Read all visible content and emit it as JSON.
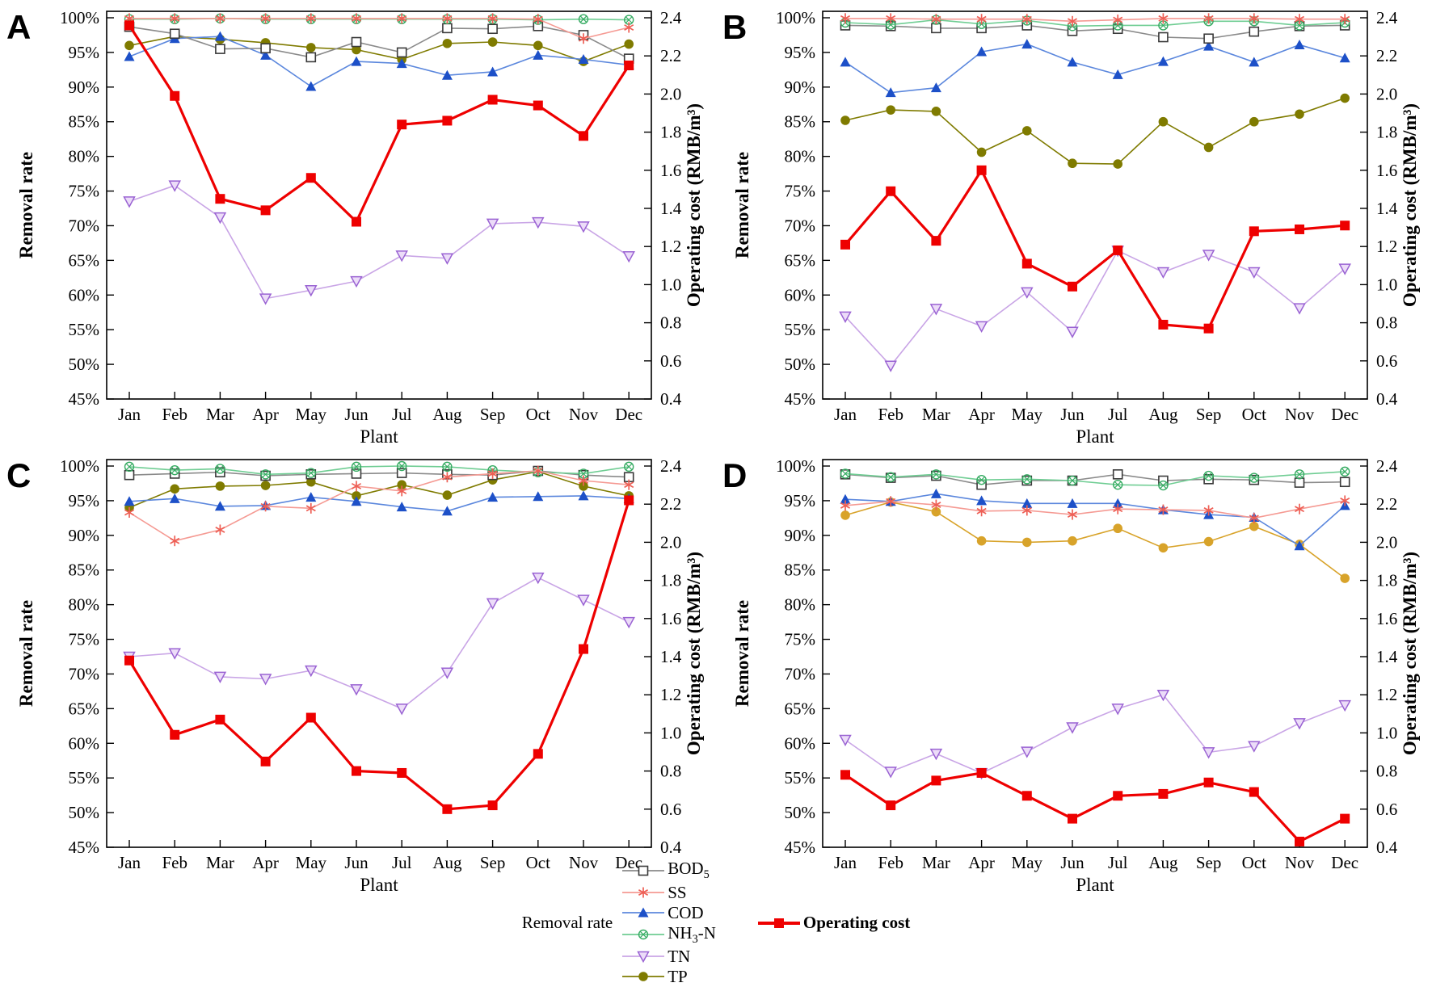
{
  "figure": {
    "panel_letters": [
      "A",
      "B",
      "C",
      "D"
    ],
    "x_axis_label": "Plant",
    "y_left_label": "Removal rate",
    "y_right_label": "Operating cost (RMB/m³)",
    "months": [
      "Jan",
      "Feb",
      "Mar",
      "Apr",
      "May",
      "Jun",
      "Jul",
      "Aug",
      "Sep",
      "Oct",
      "Nov",
      "Dec"
    ],
    "y_left": {
      "min": 45,
      "max": 100,
      "step": 5,
      "unit": "%"
    },
    "y_right": {
      "min": 0.4,
      "max": 2.4,
      "step": 0.2
    },
    "colors": {
      "bod5": "#3a3a3a",
      "bod5_line": "#8a8a8a",
      "ss": "#ee5f55",
      "ss_line": "#f59a93",
      "cod": "#1d50c8",
      "cod_line": "#5b87dd",
      "nh3n": "#36ab62",
      "nh3n_line": "#6fcd93",
      "tn": "#9a63d3",
      "tn_line": "#c9a5e6",
      "tn_fill": "#ecdcf8",
      "tp": "#7f7b00",
      "tp_panel_d": "#d8a32a",
      "operating_cost": "#ee0000"
    },
    "legend": {
      "title": "Removal rate",
      "cost_label": "Operating cost",
      "items": [
        {
          "key": "BOD5",
          "pre": "BOD",
          "sub": "5",
          "post": ""
        },
        {
          "key": "SS",
          "pre": "SS",
          "sub": "",
          "post": ""
        },
        {
          "key": "COD",
          "pre": "COD",
          "sub": "",
          "post": ""
        },
        {
          "key": "NH3-N",
          "pre": "NH",
          "sub": "3",
          "post": "-N"
        },
        {
          "key": "TN",
          "pre": "TN",
          "sub": "",
          "post": ""
        },
        {
          "key": "TP",
          "pre": "TP",
          "sub": "",
          "post": ""
        }
      ]
    },
    "series_styles": {
      "BOD5": {
        "marker": "open-square",
        "color": "#3a3a3a",
        "line": "#8a8a8a"
      },
      "SS": {
        "marker": "asterisk",
        "color": "#ee5f55",
        "line": "#f59a93"
      },
      "COD": {
        "marker": "filled-triangle-up",
        "color": "#1d50c8",
        "line": "#5b87dd"
      },
      "NH3-N": {
        "marker": "circle-x",
        "color": "#36ab62",
        "line": "#6fcd93"
      },
      "TN": {
        "marker": "open-triangle-down",
        "color": "#9a63d3",
        "line": "#c9a5e6",
        "fill": "#ecdcf8"
      },
      "TP": {
        "marker": "filled-circle",
        "color": "#7f7b00",
        "line": "#7f7b00"
      },
      "Operating cost": {
        "marker": "filled-square",
        "color": "#ee0000",
        "line": "#ee0000",
        "width": 3.2
      }
    }
  },
  "chart_data": [
    {
      "id": "A",
      "type": "line",
      "categories": [
        "Jan",
        "Feb",
        "Mar",
        "Apr",
        "May",
        "Jun",
        "Jul",
        "Aug",
        "Sep",
        "Oct",
        "Nov",
        "Dec"
      ],
      "xlabel": "Plant",
      "y_left_label": "Removal rate",
      "y_right_label": "Operating cost (RMB/m³)",
      "y_left_range": [
        45,
        100
      ],
      "y_right_range": [
        0.4,
        2.4
      ],
      "series": [
        {
          "name": "BOD5",
          "axis": "left",
          "values": [
            98.7,
            97.7,
            95.5,
            95.6,
            94.3,
            96.5,
            95.0,
            98.5,
            98.4,
            98.8,
            97.5,
            94.1
          ]
        },
        {
          "name": "SS",
          "axis": "left",
          "values": [
            99.9,
            99.9,
            99.9,
            99.9,
            99.9,
            99.9,
            99.9,
            99.9,
            99.9,
            99.8,
            97.0,
            98.6
          ]
        },
        {
          "name": "COD",
          "axis": "left",
          "values": [
            94.4,
            97.0,
            97.3,
            94.6,
            90.1,
            93.7,
            93.4,
            91.7,
            92.2,
            94.6,
            94.0,
            93.2
          ]
        },
        {
          "name": "NH3-N",
          "axis": "left",
          "values": [
            99.8,
            99.8,
            99.9,
            99.8,
            99.8,
            99.8,
            99.8,
            99.8,
            99.8,
            99.7,
            99.8,
            99.7
          ]
        },
        {
          "name": "TN",
          "axis": "left",
          "values": [
            73.5,
            75.8,
            71.2,
            59.5,
            60.7,
            62.0,
            65.7,
            65.3,
            70.3,
            70.5,
            69.9,
            65.6
          ]
        },
        {
          "name": "TP",
          "axis": "left",
          "values": [
            96.0,
            97.3,
            96.9,
            96.4,
            95.7,
            95.4,
            94.0,
            96.3,
            96.5,
            96.0,
            93.7,
            96.2
          ]
        },
        {
          "name": "Operating cost",
          "axis": "right",
          "values": [
            2.36,
            1.99,
            1.45,
            1.39,
            1.56,
            1.33,
            1.84,
            1.86,
            1.97,
            1.94,
            1.78,
            2.15
          ]
        }
      ]
    },
    {
      "id": "B",
      "type": "line",
      "categories": [
        "Jan",
        "Feb",
        "Mar",
        "Apr",
        "May",
        "Jun",
        "Jul",
        "Aug",
        "Sep",
        "Oct",
        "Nov",
        "Dec"
      ],
      "xlabel": "Plant",
      "y_left_label": "Removal rate",
      "y_right_label": "Operating cost (RMB/m³)",
      "y_left_range": [
        45,
        100
      ],
      "y_right_range": [
        0.4,
        2.4
      ],
      "series": [
        {
          "name": "BOD5",
          "axis": "left",
          "values": [
            98.9,
            98.8,
            98.5,
            98.5,
            98.9,
            98.1,
            98.4,
            97.2,
            97.0,
            98.0,
            98.8,
            98.9
          ]
        },
        {
          "name": "SS",
          "axis": "left",
          "values": [
            99.9,
            99.9,
            99.8,
            99.8,
            99.8,
            99.5,
            99.7,
            99.9,
            99.9,
            99.9,
            99.8,
            99.8
          ]
        },
        {
          "name": "COD",
          "axis": "left",
          "values": [
            93.6,
            89.2,
            89.9,
            95.1,
            96.2,
            93.6,
            91.8,
            93.7,
            95.9,
            93.6,
            96.1,
            94.2
          ]
        },
        {
          "name": "NH3-N",
          "axis": "left",
          "values": [
            99.3,
            99.0,
            99.7,
            99.1,
            99.6,
            98.8,
            98.9,
            98.9,
            99.5,
            99.5,
            98.9,
            99.3
          ]
        },
        {
          "name": "TN",
          "axis": "left",
          "values": [
            56.9,
            49.8,
            58.0,
            55.5,
            60.4,
            54.7,
            66.4,
            63.3,
            65.8,
            63.3,
            58.1,
            63.8
          ]
        },
        {
          "name": "TP",
          "axis": "left",
          "values": [
            85.2,
            86.7,
            86.5,
            80.6,
            83.7,
            79.0,
            78.9,
            85.0,
            81.3,
            85.0,
            86.1,
            88.4
          ]
        },
        {
          "name": "Operating cost",
          "axis": "right",
          "values": [
            1.21,
            1.49,
            1.23,
            1.6,
            1.11,
            0.99,
            1.18,
            0.79,
            0.77,
            1.28,
            1.29,
            1.31
          ]
        }
      ]
    },
    {
      "id": "C",
      "type": "line",
      "categories": [
        "Jan",
        "Feb",
        "Mar",
        "Apr",
        "May",
        "Jun",
        "Jul",
        "Aug",
        "Sep",
        "Oct",
        "Nov",
        "Dec"
      ],
      "xlabel": "Plant",
      "y_left_label": "Removal rate",
      "y_right_label": "Operating cost (RMB/m³)",
      "y_left_range": [
        45,
        100
      ],
      "y_right_range": [
        0.4,
        2.4
      ],
      "series": [
        {
          "name": "BOD5",
          "axis": "left",
          "values": [
            98.7,
            98.9,
            99.1,
            98.6,
            98.8,
            98.9,
            99.0,
            98.8,
            98.7,
            99.3,
            98.7,
            98.4
          ]
        },
        {
          "name": "SS",
          "axis": "left",
          "values": [
            93.3,
            89.2,
            90.8,
            94.2,
            93.9,
            97.1,
            96.4,
            98.4,
            98.9,
            99.3,
            97.9,
            97.3
          ]
        },
        {
          "name": "COD",
          "axis": "left",
          "values": [
            94.9,
            95.3,
            94.2,
            94.3,
            95.5,
            94.9,
            94.1,
            93.5,
            95.5,
            95.6,
            95.7,
            95.3
          ]
        },
        {
          "name": "NH3-N",
          "axis": "left",
          "values": [
            99.9,
            99.4,
            99.6,
            98.8,
            99.0,
            99.9,
            100.0,
            99.9,
            99.4,
            99.1,
            98.9,
            99.9
          ]
        },
        {
          "name": "TN",
          "axis": "left",
          "values": [
            72.5,
            73.0,
            69.6,
            69.3,
            70.5,
            67.8,
            65.0,
            70.2,
            80.2,
            83.9,
            80.7,
            77.5
          ]
        },
        {
          "name": "TP",
          "axis": "left",
          "values": [
            94.0,
            96.7,
            97.1,
            97.2,
            97.7,
            95.7,
            97.3,
            95.8,
            98.0,
            99.2,
            97.1,
            95.7
          ]
        },
        {
          "name": "Operating cost",
          "axis": "right",
          "values": [
            1.38,
            0.99,
            1.07,
            0.85,
            1.08,
            0.8,
            0.79,
            0.6,
            0.62,
            0.89,
            1.44,
            2.22
          ]
        }
      ]
    },
    {
      "id": "D",
      "type": "line",
      "categories": [
        "Jan",
        "Feb",
        "Mar",
        "Apr",
        "May",
        "Jun",
        "Jul",
        "Aug",
        "Sep",
        "Oct",
        "Nov",
        "Dec"
      ],
      "xlabel": "Plant",
      "y_left_label": "Removal rate",
      "y_right_label": "Operating cost (RMB/m³)",
      "y_left_range": [
        45,
        100
      ],
      "y_right_range": [
        0.4,
        2.4
      ],
      "series": [
        {
          "name": "BOD5",
          "axis": "left",
          "values": [
            98.8,
            98.3,
            98.6,
            97.3,
            97.9,
            97.9,
            98.8,
            97.9,
            98.1,
            98.0,
            97.6,
            97.7
          ]
        },
        {
          "name": "SS",
          "axis": "left",
          "values": [
            94.3,
            94.9,
            94.4,
            93.5,
            93.6,
            93.0,
            93.8,
            93.7,
            93.6,
            92.5,
            93.8,
            95.0
          ]
        },
        {
          "name": "COD",
          "axis": "left",
          "values": [
            95.2,
            94.9,
            96.0,
            95.0,
            94.6,
            94.6,
            94.6,
            93.7,
            93.0,
            92.6,
            88.5,
            94.3
          ]
        },
        {
          "name": "NH3-N",
          "axis": "left",
          "values": [
            98.9,
            98.4,
            98.8,
            98.0,
            98.1,
            97.9,
            97.3,
            97.2,
            98.6,
            98.3,
            98.8,
            99.2
          ]
        },
        {
          "name": "TN",
          "axis": "left",
          "values": [
            60.5,
            55.9,
            58.5,
            55.7,
            58.8,
            62.3,
            65.0,
            67.0,
            58.7,
            59.6,
            62.9,
            65.5
          ]
        },
        {
          "name": "TP",
          "axis": "left",
          "color_override": "#d8a32a",
          "values": [
            92.9,
            94.8,
            93.4,
            89.2,
            89.0,
            89.2,
            91.0,
            88.2,
            89.1,
            91.3,
            88.7,
            83.8
          ]
        },
        {
          "name": "Operating cost",
          "axis": "right",
          "values": [
            0.78,
            0.62,
            0.75,
            0.79,
            0.67,
            0.55,
            0.67,
            0.68,
            0.74,
            0.69,
            0.43,
            0.55
          ]
        }
      ]
    }
  ]
}
